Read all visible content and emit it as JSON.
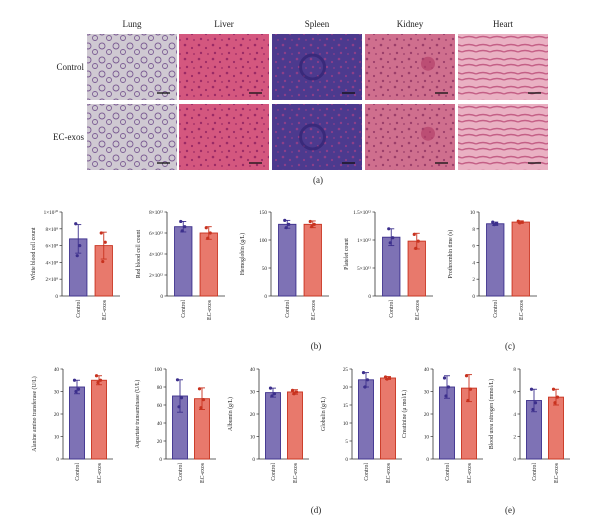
{
  "histology": {
    "columns": [
      "Lung",
      "Liver",
      "Spleen",
      "Kidney",
      "Heart"
    ],
    "rows": [
      "Control",
      "EC-exos"
    ],
    "tissue_colors": {
      "Lung": {
        "bg": "#cfc9d2",
        "fg": "#7b5c93"
      },
      "Liver": {
        "bg": "#d4577f",
        "fg": "#9b2a66"
      },
      "Spleen": {
        "bg": "#4c3a8e",
        "fg": "#8c3f8a"
      },
      "Kidney": {
        "bg": "#cf6f8e",
        "fg": "#9b3e6a"
      },
      "Heart": {
        "bg": "#eab1c3",
        "fg": "#c45f86"
      }
    }
  },
  "panel_labels": {
    "a": "(a)",
    "b": "(b)",
    "c": "(c)",
    "d": "(d)",
    "e": "(e)"
  },
  "colors": {
    "control_fill": "#7e72b5",
    "control_edge": "#3c2f8c",
    "ecexos_fill": "#e8796c",
    "ecexos_edge": "#c8321f"
  },
  "chart_data": [
    {
      "type": "bar",
      "panel": "b",
      "categories": [
        "Control",
        "EC-exos"
      ],
      "ylabel": "White blood cell count",
      "yticks": [
        "0",
        "2×10⁸",
        "4×10⁸",
        "6×10⁸",
        "8×10⁸",
        "1×10¹⁰"
      ],
      "ylim": [
        0,
        10
      ],
      "values": [
        6.8,
        6.0
      ],
      "err": [
        1.7,
        1.6
      ],
      "points": [
        [
          8.6,
          6.0,
          4.8
        ],
        [
          7.5,
          6.4,
          4.1
        ]
      ]
    },
    {
      "type": "bar",
      "panel": "b",
      "categories": [
        "Control",
        "EC-exos"
      ],
      "ylabel": "Red blood cell count",
      "yticks": [
        "0",
        "2×10¹²",
        "4×10¹²",
        "6×10¹²",
        "8×10¹²"
      ],
      "ylim": [
        0,
        8
      ],
      "values": [
        6.6,
        6.0
      ],
      "err": [
        0.5,
        0.6
      ],
      "points": [
        [
          7.1,
          6.6,
          6.2
        ],
        [
          6.5,
          6.0,
          5.5
        ]
      ]
    },
    {
      "type": "bar",
      "panel": "b",
      "categories": [
        "Control",
        "EC-exos"
      ],
      "ylabel": "Hemoglobin (g/L)",
      "yticks": [
        "0",
        "50",
        "100",
        "150"
      ],
      "ylim": [
        0,
        150
      ],
      "values": [
        128,
        128
      ],
      "err": [
        7,
        6
      ],
      "points": [
        [
          135,
          128,
          122
        ],
        [
          133,
          128,
          124
        ]
      ]
    },
    {
      "type": "bar",
      "panel": "b",
      "categories": [
        "Control",
        "EC-exos"
      ],
      "ylabel": "Platelet count",
      "yticks": [
        "0",
        "5×10¹¹",
        "1×10¹²",
        "1.5×10¹²"
      ],
      "ylim": [
        0,
        15
      ],
      "values": [
        10.5,
        9.8
      ],
      "err": [
        1.5,
        1.4
      ],
      "points": [
        [
          12.0,
          10.4,
          9.5
        ],
        [
          11.0,
          9.8,
          8.5
        ]
      ]
    },
    {
      "type": "bar",
      "panel": "c",
      "categories": [
        "Control",
        "EC-exos"
      ],
      "ylabel": "Prothrombin time (s)",
      "yticks": [
        "0",
        "2",
        "4",
        "6",
        "8",
        "10"
      ],
      "ylim": [
        0,
        10
      ],
      "values": [
        8.6,
        8.8
      ],
      "err": [
        0.2,
        0.15
      ],
      "points": [
        [
          8.8,
          8.6,
          8.5
        ],
        [
          8.9,
          8.8,
          8.7
        ]
      ]
    },
    {
      "type": "bar",
      "panel": "d",
      "categories": [
        "Control",
        "EC-exos"
      ],
      "ylabel": "Alanine amino transferase (U/L)",
      "yticks": [
        "0",
        "10",
        "20",
        "30",
        "40"
      ],
      "ylim": [
        0,
        40
      ],
      "values": [
        32,
        35
      ],
      "err": [
        3,
        2
      ],
      "points": [
        [
          35,
          31,
          30
        ],
        [
          37,
          35,
          34
        ]
      ]
    },
    {
      "type": "bar",
      "panel": "d",
      "categories": [
        "Control",
        "EC-exos"
      ],
      "ylabel": "Aspartate transaminase (U/L)",
      "yticks": [
        "0",
        "20",
        "40",
        "60",
        "80",
        "100"
      ],
      "ylim": [
        0,
        100
      ],
      "values": [
        70,
        67
      ],
      "err": [
        18,
        12
      ],
      "points": [
        [
          88,
          68,
          58
        ],
        [
          78,
          66,
          57
        ]
      ]
    },
    {
      "type": "bar",
      "panel": "d",
      "categories": [
        "Control",
        "EC-exos"
      ],
      "ylabel": "Albumin (g/L)",
      "yticks": [
        "0",
        "10",
        "20",
        "30",
        "40"
      ],
      "ylim": [
        0,
        40
      ],
      "values": [
        29.5,
        29.8
      ],
      "err": [
        2,
        1
      ],
      "points": [
        [
          31.5,
          29.0,
          28.0
        ],
        [
          30.5,
          29.8,
          29.0
        ]
      ]
    },
    {
      "type": "bar",
      "panel": "d",
      "categories": [
        "Control",
        "EC-exos"
      ],
      "ylabel": "Globulin (g/L)",
      "yticks": [
        "0",
        "5",
        "10",
        "15",
        "20",
        "25"
      ],
      "ylim": [
        0,
        25
      ],
      "values": [
        22,
        22.5
      ],
      "err": [
        2,
        0.4
      ],
      "points": [
        [
          24.0,
          22.0,
          20.0
        ],
        [
          22.8,
          22.5,
          22.2
        ]
      ]
    },
    {
      "type": "bar",
      "panel": "e",
      "categories": [
        "Control",
        "EC-exos"
      ],
      "ylabel": "Creatinine (μ mol/L)",
      "yticks": [
        "0",
        "10",
        "20",
        "30",
        "40"
      ],
      "ylim": [
        0,
        40
      ],
      "values": [
        32,
        31.5
      ],
      "err": [
        5,
        6
      ],
      "points": [
        [
          36,
          32,
          28
        ],
        [
          37,
          31,
          26
        ]
      ]
    },
    {
      "type": "bar",
      "panel": "e",
      "categories": [
        "Control",
        "EC-exos"
      ],
      "ylabel": "Blood urea nitrogen (mmol/L)",
      "yticks": [
        "0",
        "2",
        "4",
        "6",
        "8"
      ],
      "ylim": [
        0,
        8
      ],
      "values": [
        5.2,
        5.5
      ],
      "err": [
        1.0,
        0.7
      ],
      "points": [
        [
          6.2,
          5.0,
          4.4
        ],
        [
          6.2,
          5.5,
          5.0
        ]
      ]
    }
  ]
}
